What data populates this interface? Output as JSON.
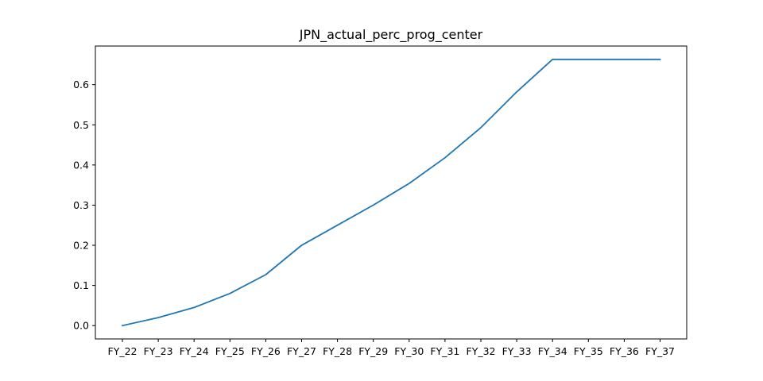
{
  "chart_data": {
    "type": "line",
    "title": "JPN_actual_perc_prog_center",
    "xlabel": "",
    "ylabel": "",
    "categories": [
      "FY_22",
      "FY_23",
      "FY_24",
      "FY_25",
      "FY_26",
      "FY_27",
      "FY_28",
      "FY_29",
      "FY_30",
      "FY_31",
      "FY_32",
      "FY_33",
      "FY_34",
      "FY_35",
      "FY_36",
      "FY_37"
    ],
    "series": [
      {
        "color": "#1f77b4",
        "values": [
          0.0,
          0.02,
          0.045,
          0.08,
          0.127,
          0.2,
          0.25,
          0.3,
          0.354,
          0.418,
          0.493,
          0.582,
          0.663,
          0.663,
          0.663,
          0.663
        ]
      }
    ],
    "ylim": [
      -0.0332,
      0.6962
    ],
    "yticks": [
      0.0,
      0.1,
      0.2,
      0.3,
      0.4,
      0.5,
      0.6
    ],
    "ytick_labels": [
      "0.0",
      "0.1",
      "0.2",
      "0.3",
      "0.4",
      "0.5",
      "0.6"
    ],
    "grid": false,
    "legend": "none"
  }
}
